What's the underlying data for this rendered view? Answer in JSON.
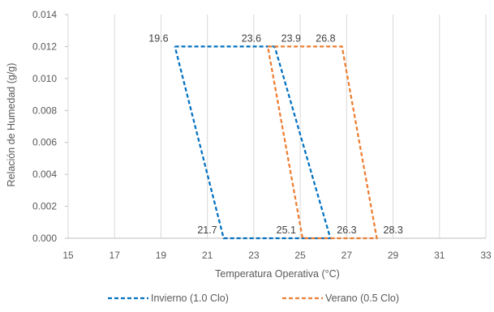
{
  "chart_data": {
    "type": "scatter",
    "xlabel": "Temperatura Operativa (°C)",
    "ylabel": "Relación de Humedad (g/g)",
    "xlim": [
      15,
      33
    ],
    "ylim": [
      0,
      0.014
    ],
    "xticks": [
      "15",
      "17",
      "19",
      "21",
      "23",
      "25",
      "27",
      "29",
      "31",
      "33"
    ],
    "yticks": [
      "0.000",
      "0.002",
      "0.004",
      "0.006",
      "0.008",
      "0.010",
      "0.012",
      "0.014"
    ],
    "grid": "vertical",
    "legend_position": "bottom",
    "series": [
      {
        "name": "Invierno (1.0 Clo)",
        "color": "#0070C0",
        "style": "dashed",
        "points": [
          [
            19.6,
            0.012
          ],
          [
            23.9,
            0.012
          ],
          [
            26.3,
            0.0
          ],
          [
            21.7,
            0.0
          ],
          [
            19.6,
            0.012
          ]
        ]
      },
      {
        "name": "Verano (0.5 Clo)",
        "color": "#ED7D31",
        "style": "dashed",
        "points": [
          [
            23.6,
            0.012
          ],
          [
            26.8,
            0.012
          ],
          [
            28.3,
            0.0
          ],
          [
            25.1,
            0.0
          ],
          [
            23.6,
            0.012
          ]
        ]
      }
    ],
    "data_labels": [
      {
        "text": "19.6",
        "x": 19.6,
        "y": 0.012,
        "anchor": "left"
      },
      {
        "text": "23.6",
        "x": 23.6,
        "y": 0.012,
        "anchor": "left"
      },
      {
        "text": "23.9",
        "x": 23.9,
        "y": 0.012,
        "anchor": "right"
      },
      {
        "text": "26.8",
        "x": 26.8,
        "y": 0.012,
        "anchor": "left"
      },
      {
        "text": "21.7",
        "x": 21.7,
        "y": 0.0,
        "anchor": "left"
      },
      {
        "text": "25.1",
        "x": 25.1,
        "y": 0.0,
        "anchor": "left"
      },
      {
        "text": "26.3",
        "x": 26.3,
        "y": 0.0,
        "anchor": "right"
      },
      {
        "text": "28.3",
        "x": 28.3,
        "y": 0.0,
        "anchor": "right"
      }
    ]
  }
}
